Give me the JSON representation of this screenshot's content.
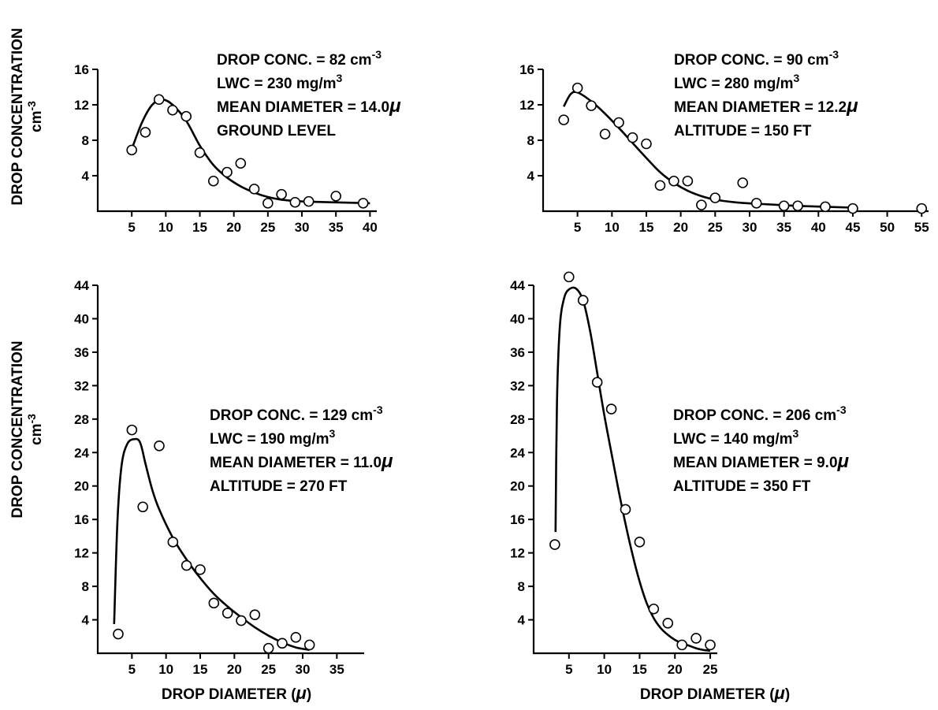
{
  "figure": {
    "ylabel_line1": "DROP CONCENTRATION",
    "ylabel_line2": "cm",
    "ylabel_sup": "-3",
    "xlabel_main": "DROP DIAMETER (",
    "xlabel_mu": "μ",
    "xlabel_close": ")"
  },
  "chart_data": [
    {
      "type": "scatter",
      "title": "",
      "xlabel": "",
      "ylabel": "DROP CONCENTRATION cm-3",
      "xlim": [
        0,
        41
      ],
      "ylim": [
        0,
        16
      ],
      "xticks": [
        5,
        10,
        15,
        20,
        25,
        30,
        35,
        40
      ],
      "yticks": [
        4,
        8,
        12,
        16
      ],
      "annotation": [
        {
          "text": "DROP CONC. = 82 cm",
          "sup": "-3"
        },
        {
          "text": "LWC = 230 mg/m",
          "sup": "3"
        },
        {
          "text": "MEAN DIAMETER = 14.0",
          "mu": "μ"
        },
        {
          "text": "GROUND  LEVEL"
        }
      ],
      "points": [
        [
          5,
          6.9
        ],
        [
          7,
          8.9
        ],
        [
          9,
          12.6
        ],
        [
          11,
          11.4
        ],
        [
          13,
          10.7
        ],
        [
          15,
          6.6
        ],
        [
          17,
          3.4
        ],
        [
          19,
          4.4
        ],
        [
          21,
          5.4
        ],
        [
          23,
          2.5
        ],
        [
          25,
          0.9
        ],
        [
          27,
          1.9
        ],
        [
          29,
          1.0
        ],
        [
          31,
          1.1
        ],
        [
          35,
          1.7
        ],
        [
          39,
          0.9
        ]
      ],
      "curve": [
        [
          5,
          7.0
        ],
        [
          6.5,
          10.0
        ],
        [
          8,
          12.0
        ],
        [
          9.5,
          12.6
        ],
        [
          11,
          12.0
        ],
        [
          13,
          10.2
        ],
        [
          15,
          7.4
        ],
        [
          17,
          5.2
        ],
        [
          19,
          3.8
        ],
        [
          21,
          2.8
        ],
        [
          23,
          2.1
        ],
        [
          25,
          1.6
        ],
        [
          27,
          1.3
        ],
        [
          30,
          1.1
        ],
        [
          35,
          1.0
        ],
        [
          40,
          0.9
        ]
      ]
    },
    {
      "type": "scatter",
      "title": "",
      "xlabel": "",
      "ylabel": "",
      "xlim": [
        0,
        56
      ],
      "ylim": [
        0,
        16
      ],
      "xticks": [
        5,
        10,
        15,
        20,
        25,
        30,
        35,
        40,
        45,
        50,
        55
      ],
      "yticks": [
        4,
        8,
        12,
        16
      ],
      "annotation": [
        {
          "text": "DROP CONC. = 90 cm",
          "sup": "-3"
        },
        {
          "text": "LWC = 280 mg/m",
          "sup": "3"
        },
        {
          "text": "MEAN DIAMETER = 12.2",
          "mu": "μ"
        },
        {
          "text": "ALTITUDE = 150 FT"
        }
      ],
      "points": [
        [
          3,
          10.3
        ],
        [
          5,
          13.9
        ],
        [
          7,
          11.9
        ],
        [
          9,
          8.7
        ],
        [
          11,
          10.0
        ],
        [
          13,
          8.3
        ],
        [
          15,
          7.6
        ],
        [
          17,
          2.9
        ],
        [
          19,
          3.4
        ],
        [
          21,
          3.4
        ],
        [
          23,
          0.7
        ],
        [
          25,
          1.5
        ],
        [
          29,
          3.2
        ],
        [
          31,
          0.9
        ],
        [
          35,
          0.6
        ],
        [
          37,
          0.6
        ],
        [
          41,
          0.5
        ],
        [
          45,
          0.3
        ],
        [
          55,
          0.3
        ]
      ],
      "curve": [
        [
          3,
          11.8
        ],
        [
          4,
          13.2
        ],
        [
          5,
          13.4
        ],
        [
          7,
          12.4
        ],
        [
          9,
          11.0
        ],
        [
          11,
          9.4
        ],
        [
          13,
          7.7
        ],
        [
          15,
          6.0
        ],
        [
          17,
          4.4
        ],
        [
          19,
          3.2
        ],
        [
          21,
          2.3
        ],
        [
          23,
          1.7
        ],
        [
          25,
          1.3
        ],
        [
          28,
          1.0
        ],
        [
          32,
          0.8
        ],
        [
          37,
          0.6
        ],
        [
          41,
          0.5
        ],
        [
          45,
          0.4
        ]
      ]
    },
    {
      "type": "scatter",
      "title": "",
      "xlabel": "DROP DIAMETER (μ)",
      "ylabel": "DROP CONCENTRATION cm-3",
      "xlim": [
        0,
        39
      ],
      "ylim": [
        0,
        44
      ],
      "xticks": [
        5,
        10,
        15,
        20,
        25,
        30,
        35
      ],
      "yticks": [
        4,
        8,
        12,
        16,
        20,
        24,
        28,
        32,
        36,
        40,
        44
      ],
      "annotation": [
        {
          "text": "DROP CONC. = 129 cm",
          "sup": "-3"
        },
        {
          "text": "LWC = 190 mg/m",
          "sup": "3"
        },
        {
          "text": "MEAN DIAMETER = 11.0",
          "mu": "μ"
        },
        {
          "text": "ALTITUDE = 270 FT"
        }
      ],
      "points": [
        [
          3,
          2.3
        ],
        [
          5,
          26.7
        ],
        [
          6.6,
          17.5
        ],
        [
          9,
          24.8
        ],
        [
          11,
          13.3
        ],
        [
          13,
          10.5
        ],
        [
          15,
          10.0
        ],
        [
          17,
          6.0
        ],
        [
          19,
          4.8
        ],
        [
          21,
          3.9
        ],
        [
          23,
          4.6
        ],
        [
          25,
          0.6
        ],
        [
          27,
          1.2
        ],
        [
          29,
          1.9
        ],
        [
          31,
          1.0
        ]
      ],
      "curve": [
        [
          2.4,
          3.5
        ],
        [
          2.9,
          16
        ],
        [
          3.5,
          22.5
        ],
        [
          4.3,
          25
        ],
        [
          5.3,
          25.6
        ],
        [
          6.2,
          25.2
        ],
        [
          7,
          22.6
        ],
        [
          8,
          19.5
        ],
        [
          9,
          17.2
        ],
        [
          11,
          13.8
        ],
        [
          13,
          11.2
        ],
        [
          15,
          9.0
        ],
        [
          17,
          7.1
        ],
        [
          19,
          5.6
        ],
        [
          21,
          4.3
        ],
        [
          23,
          3.1
        ],
        [
          25,
          2.1
        ],
        [
          27,
          1.3
        ],
        [
          29,
          0.7
        ],
        [
          31,
          0.4
        ]
      ]
    },
    {
      "type": "scatter",
      "title": "",
      "xlabel": "DROP DIAMETER (μ)",
      "ylabel": "",
      "xlim": [
        0,
        26
      ],
      "ylim": [
        0,
        44
      ],
      "xticks": [
        5,
        10,
        15,
        20,
        25
      ],
      "yticks": [
        4,
        8,
        12,
        16,
        20,
        24,
        28,
        32,
        36,
        40,
        44
      ],
      "annotation": [
        {
          "text": "DROP CONC. = 206 cm",
          "sup": "-3"
        },
        {
          "text": "LWC = 140 mg/m",
          "sup": "3"
        },
        {
          "text": "MEAN DIAMETER = 9.0",
          "mu": "μ"
        },
        {
          "text": "ALTITUDE = 350 FT"
        }
      ],
      "points": [
        [
          3,
          13.0
        ],
        [
          5,
          45.0
        ],
        [
          7,
          42.2
        ],
        [
          9,
          32.4
        ],
        [
          11,
          29.2
        ],
        [
          13,
          17.2
        ],
        [
          15,
          13.3
        ],
        [
          17,
          5.3
        ],
        [
          19,
          3.6
        ],
        [
          21,
          1.0
        ],
        [
          23,
          1.8
        ],
        [
          25,
          1.0
        ]
      ],
      "curve": [
        [
          3.1,
          14.5
        ],
        [
          3.3,
          30
        ],
        [
          3.7,
          39
        ],
        [
          4.3,
          42.4
        ],
        [
          5,
          43.5
        ],
        [
          6,
          43.6
        ],
        [
          7,
          42.2
        ],
        [
          8,
          38.5
        ],
        [
          9,
          33.5
        ],
        [
          10,
          28.5
        ],
        [
          11,
          24.0
        ],
        [
          12,
          19.6
        ],
        [
          13,
          15.5
        ],
        [
          14,
          11.8
        ],
        [
          15,
          8.6
        ],
        [
          16,
          6.0
        ],
        [
          17,
          4.2
        ],
        [
          18,
          3.0
        ],
        [
          19,
          2.2
        ],
        [
          20,
          1.6
        ],
        [
          21,
          1.2
        ],
        [
          22,
          0.9
        ],
        [
          23,
          0.6
        ],
        [
          24,
          0.4
        ],
        [
          25,
          0.3
        ]
      ]
    }
  ]
}
